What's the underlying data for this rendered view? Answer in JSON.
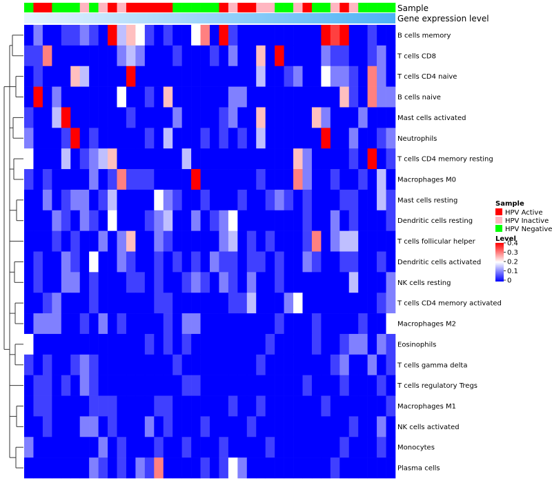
{
  "chart_data": {
    "type": "heatmap",
    "title": "",
    "annotation_tracks": [
      {
        "label": "Sample"
      },
      {
        "label": "Gene expression level"
      }
    ],
    "rows": [
      "B cells memory",
      "T cells CD8",
      "T cells CD4 naive",
      "B cells naive",
      "Mast cells activated",
      "Neutrophils",
      "T cells CD4 memory resting",
      "Macrophages M0",
      "Mast cells resting",
      "Dendritic cells resting",
      "T cells follicular helper",
      "Dendritic cells activated",
      "NK cells resting",
      "T cells CD4 memory activated",
      "Macrophages M2",
      "Eosinophils",
      "T cells gamma delta",
      "T cells regulatory  Tregs",
      "Macrophages M1",
      "NK cells activated",
      "Monocytes",
      "Plasma cells"
    ],
    "sample_groups": [
      "HPV Negative",
      "HPV Active",
      "HPV Active",
      "HPV Negative",
      "HPV Negative",
      "HPV Negative",
      "HPV Inactive",
      "HPV Negative",
      "HPV Inactive",
      "HPV Active",
      "HPV Inactive",
      "HPV Active",
      "HPV Active",
      "HPV Active",
      "HPV Active",
      "HPV Active",
      "HPV Negative",
      "HPV Negative",
      "HPV Negative",
      "HPV Negative",
      "HPV Negative",
      "HPV Active",
      "HPV Inactive",
      "HPV Active",
      "HPV Active",
      "HPV Inactive",
      "HPV Inactive",
      "HPV Negative",
      "HPV Negative",
      "HPV Inactive",
      "HPV Active",
      "HPV Negative",
      "HPV Negative",
      "HPV Inactive",
      "HPV Active",
      "HPV Inactive",
      "HPV Negative",
      "HPV Negative",
      "HPV Negative",
      "HPV Negative"
    ],
    "values": [
      [
        0.0,
        0.1,
        0.0,
        0.0,
        0.05,
        0.05,
        0.1,
        0.05,
        0.0,
        0.4,
        0.15,
        0.25,
        0.2,
        0.05,
        0.0,
        0.05,
        0.0,
        0.0,
        0.2,
        0.3,
        0.0,
        0.4,
        0.05,
        0.0,
        0.0,
        0.0,
        0.0,
        0.0,
        0.0,
        0.0,
        0.0,
        0.0,
        0.4,
        0.35,
        0.4,
        0.0,
        0.0,
        0.05,
        0.0,
        0.0
      ],
      [
        0.05,
        0.05,
        0.3,
        0.0,
        0.0,
        0.0,
        0.0,
        0.0,
        0.0,
        0.0,
        0.1,
        0.15,
        0.1,
        0.0,
        0.0,
        0.0,
        0.05,
        0.0,
        0.0,
        0.0,
        0.05,
        0.0,
        0.1,
        0.0,
        0.0,
        0.25,
        0.0,
        0.4,
        0.0,
        0.0,
        0.0,
        0.0,
        0.1,
        0.05,
        0.05,
        0.0,
        0.0,
        0.05,
        0.1,
        0.0
      ],
      [
        0.0,
        0.05,
        0.0,
        0.0,
        0.0,
        0.25,
        0.15,
        0.0,
        0.0,
        0.0,
        0.0,
        0.4,
        0.0,
        0.0,
        0.0,
        0.0,
        0.0,
        0.0,
        0.0,
        0.0,
        0.0,
        0.0,
        0.0,
        0.0,
        0.0,
        0.15,
        0.0,
        0.0,
        0.05,
        0.1,
        0.0,
        0.0,
        0.2,
        0.1,
        0.1,
        0.05,
        0.0,
        0.3,
        0.1,
        0.0
      ],
      [
        0.0,
        0.4,
        0.0,
        0.1,
        0.0,
        0.0,
        0.0,
        0.0,
        0.0,
        0.0,
        0.2,
        0.0,
        0.0,
        0.05,
        0.0,
        0.25,
        0.0,
        0.0,
        0.0,
        0.0,
        0.0,
        0.0,
        0.1,
        0.1,
        0.0,
        0.0,
        0.0,
        0.0,
        0.0,
        0.0,
        0.0,
        0.0,
        0.0,
        0.0,
        0.25,
        0.05,
        0.0,
        0.3,
        0.1,
        0.1
      ],
      [
        0.05,
        0.0,
        0.0,
        0.15,
        0.4,
        0.0,
        0.0,
        0.0,
        0.0,
        0.0,
        0.0,
        0.05,
        0.0,
        0.0,
        0.0,
        0.0,
        0.1,
        0.0,
        0.0,
        0.0,
        0.0,
        0.05,
        0.1,
        0.0,
        0.0,
        0.25,
        0.0,
        0.0,
        0.0,
        0.0,
        0.0,
        0.25,
        0.1,
        0.0,
        0.0,
        0.0,
        0.1,
        0.0,
        0.0,
        0.0
      ],
      [
        0.1,
        0.0,
        0.0,
        0.0,
        0.05,
        0.4,
        0.0,
        0.05,
        0.0,
        0.0,
        0.0,
        0.0,
        0.0,
        0.05,
        0.0,
        0.15,
        0.0,
        0.0,
        0.0,
        0.05,
        0.0,
        0.05,
        0.0,
        0.05,
        0.0,
        0.15,
        0.0,
        0.0,
        0.0,
        0.0,
        0.0,
        0.0,
        0.4,
        0.0,
        0.0,
        0.1,
        0.0,
        0.0,
        0.05,
        0.1
      ],
      [
        0.2,
        0.0,
        0.0,
        0.0,
        0.15,
        0.0,
        0.05,
        0.1,
        0.15,
        0.25,
        0.0,
        0.0,
        0.0,
        0.0,
        0.0,
        0.0,
        0.0,
        0.15,
        0.0,
        0.0,
        0.0,
        0.0,
        0.0,
        0.0,
        0.0,
        0.0,
        0.0,
        0.0,
        0.0,
        0.25,
        0.1,
        0.0,
        0.0,
        0.0,
        0.0,
        0.05,
        0.0,
        0.4,
        0.0,
        0.05
      ],
      [
        0.05,
        0.0,
        0.05,
        0.0,
        0.0,
        0.0,
        0.0,
        0.1,
        0.0,
        0.05,
        0.3,
        0.05,
        0.05,
        0.05,
        0.0,
        0.0,
        0.0,
        0.0,
        0.4,
        0.0,
        0.0,
        0.0,
        0.0,
        0.0,
        0.0,
        0.05,
        0.0,
        0.0,
        0.0,
        0.3,
        0.1,
        0.0,
        0.0,
        0.05,
        0.0,
        0.0,
        0.05,
        0.0,
        0.15,
        0.0
      ],
      [
        0.0,
        0.0,
        0.1,
        0.0,
        0.05,
        0.1,
        0.1,
        0.0,
        0.05,
        0.15,
        0.0,
        0.0,
        0.0,
        0.0,
        0.2,
        0.1,
        0.05,
        0.0,
        0.0,
        0.05,
        0.0,
        0.0,
        0.0,
        0.05,
        0.0,
        0.0,
        0.05,
        0.1,
        0.05,
        0.0,
        0.05,
        0.0,
        0.0,
        0.0,
        0.05,
        0.05,
        0.0,
        0.0,
        0.15,
        0.05
      ],
      [
        0.0,
        0.0,
        0.0,
        0.1,
        0.05,
        0.0,
        0.1,
        0.05,
        0.0,
        0.2,
        0.0,
        0.0,
        0.0,
        0.05,
        0.1,
        0.15,
        0.0,
        0.0,
        0.1,
        0.0,
        0.05,
        0.1,
        0.2,
        0.0,
        0.0,
        0.0,
        0.0,
        0.0,
        0.0,
        0.0,
        0.05,
        0.0,
        0.0,
        0.1,
        0.0,
        0.05,
        0.0,
        0.0,
        0.0,
        0.05
      ],
      [
        0.0,
        0.0,
        0.0,
        0.05,
        0.0,
        0.05,
        0.0,
        0.0,
        0.1,
        0.0,
        0.1,
        0.25,
        0.0,
        0.0,
        0.1,
        0.05,
        0.0,
        0.0,
        0.0,
        0.0,
        0.0,
        0.1,
        0.15,
        0.0,
        0.05,
        0.0,
        0.05,
        0.0,
        0.0,
        0.0,
        0.05,
        0.3,
        0.0,
        0.1,
        0.15,
        0.15,
        0.0,
        0.0,
        0.0,
        0.0
      ],
      [
        0.0,
        0.05,
        0.0,
        0.0,
        0.1,
        0.05,
        0.0,
        0.2,
        0.0,
        0.0,
        0.1,
        0.05,
        0.0,
        0.0,
        0.05,
        0.0,
        0.05,
        0.0,
        0.05,
        0.0,
        0.1,
        0.05,
        0.05,
        0.0,
        0.05,
        0.05,
        0.0,
        0.05,
        0.0,
        0.0,
        0.1,
        0.05,
        0.0,
        0.0,
        0.05,
        0.05,
        0.0,
        0.0,
        0.05,
        0.0
      ],
      [
        0.0,
        0.05,
        0.0,
        0.0,
        0.1,
        0.1,
        0.0,
        0.05,
        0.0,
        0.0,
        0.0,
        0.05,
        0.05,
        0.0,
        0.05,
        0.0,
        0.0,
        0.05,
        0.1,
        0.05,
        0.0,
        0.1,
        0.05,
        0.0,
        0.1,
        0.0,
        0.0,
        0.05,
        0.0,
        0.0,
        0.0,
        0.0,
        0.0,
        0.0,
        0.0,
        0.15,
        0.0,
        0.0,
        0.0,
        0.1
      ],
      [
        0.0,
        0.0,
        0.05,
        0.1,
        0.0,
        0.0,
        0.0,
        0.05,
        0.0,
        0.0,
        0.0,
        0.0,
        0.0,
        0.0,
        0.05,
        0.05,
        0.0,
        0.0,
        0.0,
        0.0,
        0.0,
        0.0,
        0.05,
        0.05,
        0.15,
        0.0,
        0.0,
        0.0,
        0.1,
        0.2,
        0.0,
        0.0,
        0.0,
        0.0,
        0.0,
        0.0,
        0.0,
        0.0,
        0.05,
        0.1
      ],
      [
        0.0,
        0.1,
        0.1,
        0.1,
        0.0,
        0.0,
        0.05,
        0.0,
        0.1,
        0.0,
        0.05,
        0.0,
        0.0,
        0.0,
        0.0,
        0.05,
        0.0,
        0.1,
        0.1,
        0.0,
        0.0,
        0.0,
        0.0,
        0.0,
        0.0,
        0.0,
        0.0,
        0.05,
        0.0,
        0.0,
        0.0,
        0.05,
        0.0,
        0.0,
        0.0,
        0.0,
        0.05,
        0.0,
        0.0,
        0.2
      ],
      [
        0.2,
        0.0,
        0.0,
        0.0,
        0.0,
        0.0,
        0.0,
        0.0,
        0.0,
        0.0,
        0.0,
        0.0,
        0.0,
        0.05,
        0.0,
        0.05,
        0.0,
        0.05,
        0.0,
        0.0,
        0.0,
        0.0,
        0.0,
        0.0,
        0.0,
        0.0,
        0.05,
        0.0,
        0.0,
        0.0,
        0.0,
        0.05,
        0.0,
        0.0,
        0.05,
        0.1,
        0.1,
        0.0,
        0.1,
        0.05
      ],
      [
        0.05,
        0.0,
        0.05,
        0.0,
        0.0,
        0.05,
        0.1,
        0.05,
        0.0,
        0.0,
        0.0,
        0.0,
        0.0,
        0.0,
        0.0,
        0.0,
        0.05,
        0.0,
        0.0,
        0.0,
        0.0,
        0.0,
        0.0,
        0.0,
        0.0,
        0.05,
        0.0,
        0.0,
        0.0,
        0.0,
        0.0,
        0.0,
        0.0,
        0.05,
        0.1,
        0.0,
        0.0,
        0.1,
        0.0,
        0.05
      ],
      [
        0.0,
        0.05,
        0.05,
        0.0,
        0.05,
        0.0,
        0.1,
        0.05,
        0.0,
        0.0,
        0.0,
        0.0,
        0.0,
        0.0,
        0.0,
        0.0,
        0.0,
        0.05,
        0.05,
        0.0,
        0.0,
        0.0,
        0.0,
        0.0,
        0.0,
        0.0,
        0.0,
        0.0,
        0.0,
        0.0,
        0.05,
        0.0,
        0.0,
        0.0,
        0.05,
        0.0,
        0.0,
        0.0,
        0.05,
        0.0
      ],
      [
        0.0,
        0.05,
        0.05,
        0.0,
        0.0,
        0.0,
        0.0,
        0.05,
        0.05,
        0.05,
        0.0,
        0.0,
        0.0,
        0.0,
        0.05,
        0.05,
        0.0,
        0.0,
        0.0,
        0.0,
        0.0,
        0.0,
        0.05,
        0.0,
        0.0,
        0.05,
        0.0,
        0.0,
        0.0,
        0.0,
        0.0,
        0.0,
        0.05,
        0.0,
        0.0,
        0.0,
        0.0,
        0.0,
        0.0,
        0.05
      ],
      [
        0.0,
        0.0,
        0.05,
        0.0,
        0.0,
        0.0,
        0.1,
        0.1,
        0.0,
        0.05,
        0.0,
        0.0,
        0.0,
        0.1,
        0.0,
        0.05,
        0.0,
        0.0,
        0.0,
        0.05,
        0.0,
        0.0,
        0.0,
        0.0,
        0.05,
        0.0,
        0.0,
        0.0,
        0.0,
        0.0,
        0.0,
        0.0,
        0.0,
        0.0,
        0.0,
        0.05,
        0.0,
        0.0,
        0.1,
        0.0
      ],
      [
        0.1,
        0.0,
        0.0,
        0.0,
        0.0,
        0.0,
        0.0,
        0.0,
        0.1,
        0.0,
        0.05,
        0.0,
        0.0,
        0.0,
        0.05,
        0.0,
        0.0,
        0.05,
        0.0,
        0.0,
        0.0,
        0.05,
        0.0,
        0.0,
        0.0,
        0.0,
        0.05,
        0.0,
        0.0,
        0.0,
        0.0,
        0.0,
        0.0,
        0.0,
        0.05,
        0.0,
        0.0,
        0.0,
        0.05,
        0.0
      ],
      [
        0.0,
        0.0,
        0.0,
        0.0,
        0.0,
        0.0,
        0.0,
        0.1,
        0.05,
        0.0,
        0.05,
        0.0,
        0.1,
        0.05,
        0.3,
        0.0,
        0.0,
        0.0,
        0.0,
        0.05,
        0.0,
        0.05,
        0.2,
        0.1,
        0.0,
        0.0,
        0.0,
        0.0,
        0.0,
        0.0,
        0.0,
        0.0,
        0.0,
        0.05,
        0.0,
        0.0,
        0.0,
        0.0,
        0.0,
        0.0
      ]
    ],
    "color_scale": {
      "min": 0,
      "max": 0.4,
      "low": "#0000FF",
      "mid": "#FFFFFF",
      "high": "#FF0000",
      "mid_value": 0.2
    },
    "legend": {
      "placement": "right",
      "sample_title": "Sample",
      "sample_items": [
        {
          "label": "HPV Active",
          "color": "#FF0000"
        },
        {
          "label": "HPV Inactive",
          "color": "#FFB6C1"
        },
        {
          "label": "HPV Negative",
          "color": "#00FF00"
        }
      ],
      "level_title": "Level",
      "level_ticks": [
        "0.4",
        "0.3",
        "0.2",
        "0.1",
        "0"
      ]
    },
    "gene_expression_colors": {
      "low": "#D6ECFF",
      "high": "#4DB2F5"
    }
  }
}
